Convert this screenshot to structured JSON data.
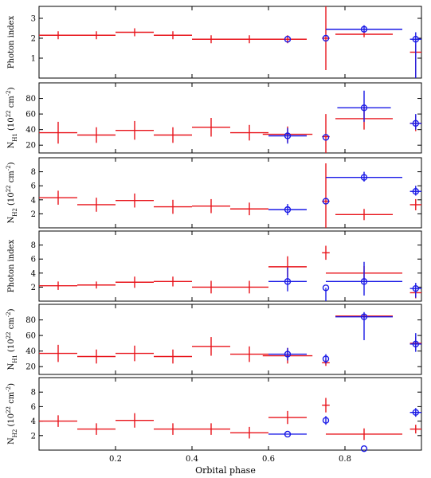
{
  "chart_data": [
    {
      "type": "scatter",
      "ylabel": "Photon index",
      "xlim": [
        0.0,
        1.0
      ],
      "ylim": [
        0.0,
        3.6
      ],
      "yticks": [
        1,
        2,
        3
      ],
      "series": [
        {
          "color": "#e8141b",
          "marker": "plus",
          "points": [
            {
              "x": 0.05,
              "xerr": 0.05,
              "y": 2.15,
              "yerr": [
                0.2,
                0.2
              ]
            },
            {
              "x": 0.15,
              "xerr": 0.05,
              "y": 2.15,
              "yerr": [
                0.2,
                0.2
              ]
            },
            {
              "x": 0.25,
              "xerr": 0.05,
              "y": 2.3,
              "yerr": [
                0.2,
                0.2
              ]
            },
            {
              "x": 0.35,
              "xerr": 0.05,
              "y": 2.15,
              "yerr": [
                0.2,
                0.2
              ]
            },
            {
              "x": 0.45,
              "xerr": 0.05,
              "y": 1.95,
              "yerr": [
                0.2,
                0.2
              ]
            },
            {
              "x": 0.55,
              "xerr": 0.05,
              "y": 1.95,
              "yerr": [
                0.2,
                0.2
              ]
            },
            {
              "x": 0.65,
              "xerr": 0.05,
              "y": 1.95,
              "yerr": [
                0.2,
                0.2
              ]
            },
            {
              "x": 0.75,
              "xerr": 0.01,
              "y": 2.0,
              "yerr": [
                1.6,
                1.6
              ]
            },
            {
              "x": 0.85,
              "xerr": 0.075,
              "y": 2.2,
              "yerr": [
                0.15,
                0.15
              ]
            },
            {
              "x": 0.985,
              "xerr": 0.015,
              "y": 1.3,
              "yerr": [
                1.3,
                0.4
              ]
            }
          ]
        },
        {
          "color": "#1a1ae6",
          "marker": "circle",
          "points": [
            {
              "x": 0.65,
              "xerr": 0.0,
              "y": 1.95,
              "yerr": [
                0.0,
                0.0
              ]
            },
            {
              "x": 0.75,
              "xerr": 0.0,
              "y": 2.0,
              "yerr": [
                0.0,
                0.0
              ]
            },
            {
              "x": 0.85,
              "xerr": 0.1,
              "y": 2.45,
              "yerr": [
                0.15,
                0.2
              ]
            },
            {
              "x": 0.985,
              "xerr": 0.015,
              "y": 1.95,
              "yerr": [
                1.95,
                0.35
              ]
            }
          ]
        }
      ]
    },
    {
      "type": "scatter",
      "ylabel": "N_H1 (10^22 cm^-2)",
      "xlim": [
        0.0,
        1.0
      ],
      "ylim": [
        10,
        100
      ],
      "yticks": [
        20,
        40,
        60,
        80
      ],
      "series": [
        {
          "color": "#e8141b",
          "marker": "plus",
          "points": [
            {
              "x": 0.05,
              "xerr": 0.05,
              "y": 36,
              "yerr": [
                14,
                14
              ]
            },
            {
              "x": 0.15,
              "xerr": 0.05,
              "y": 33,
              "yerr": [
                10,
                10
              ]
            },
            {
              "x": 0.25,
              "xerr": 0.05,
              "y": 39,
              "yerr": [
                12,
                12
              ]
            },
            {
              "x": 0.35,
              "xerr": 0.05,
              "y": 33,
              "yerr": [
                10,
                10
              ]
            },
            {
              "x": 0.45,
              "xerr": 0.05,
              "y": 43,
              "yerr": [
                12,
                12
              ]
            },
            {
              "x": 0.55,
              "xerr": 0.05,
              "y": 36,
              "yerr": [
                10,
                10
              ]
            },
            {
              "x": 0.65,
              "xerr": 0.065,
              "y": 34,
              "yerr": [
                10,
                10
              ]
            },
            {
              "x": 0.75,
              "xerr": 0.01,
              "y": 31,
              "yerr": [
                21,
                29
              ]
            },
            {
              "x": 0.85,
              "xerr": 0.075,
              "y": 54,
              "yerr": [
                14,
                16
              ]
            },
            {
              "x": 0.985,
              "xerr": 0.015,
              "y": 48,
              "yerr": [
                10,
                10
              ]
            }
          ]
        },
        {
          "color": "#1a1ae6",
          "marker": "circle",
          "points": [
            {
              "x": 0.65,
              "xerr": 0.05,
              "y": 32,
              "yerr": [
                10,
                10
              ]
            },
            {
              "x": 0.75,
              "xerr": 0.0,
              "y": 30,
              "yerr": [
                0.0,
                0.0
              ]
            },
            {
              "x": 0.85,
              "xerr": 0.07,
              "y": 68,
              "yerr": [
                18,
                22
              ]
            },
            {
              "x": 0.985,
              "xerr": 0.015,
              "y": 48,
              "yerr": [
                8,
                12
              ]
            }
          ]
        }
      ]
    },
    {
      "type": "scatter",
      "ylabel": "N_H2 (10^22 cm^-2)",
      "xlim": [
        0.0,
        1.0
      ],
      "ylim": [
        0.0,
        10.0
      ],
      "yticks": [
        2,
        4,
        6,
        8
      ],
      "series": [
        {
          "color": "#e8141b",
          "marker": "plus",
          "points": [
            {
              "x": 0.05,
              "xerr": 0.05,
              "y": 4.3,
              "yerr": [
                1.0,
                1.0
              ]
            },
            {
              "x": 0.15,
              "xerr": 0.05,
              "y": 3.3,
              "yerr": [
                1.0,
                1.0
              ]
            },
            {
              "x": 0.25,
              "xerr": 0.05,
              "y": 3.9,
              "yerr": [
                1.0,
                1.0
              ]
            },
            {
              "x": 0.35,
              "xerr": 0.05,
              "y": 3.0,
              "yerr": [
                1.0,
                1.0
              ]
            },
            {
              "x": 0.45,
              "xerr": 0.05,
              "y": 3.1,
              "yerr": [
                1.0,
                1.0
              ]
            },
            {
              "x": 0.55,
              "xerr": 0.05,
              "y": 2.7,
              "yerr": [
                0.9,
                0.9
              ]
            },
            {
              "x": 0.75,
              "xerr": 0.01,
              "y": 3.8,
              "yerr": [
                3.8,
                5.4
              ]
            },
            {
              "x": 0.85,
              "xerr": 0.075,
              "y": 1.9,
              "yerr": [
                0.8,
                0.8
              ]
            },
            {
              "x": 0.985,
              "xerr": 0.015,
              "y": 3.3,
              "yerr": [
                0.8,
                0.8
              ]
            }
          ]
        },
        {
          "color": "#1a1ae6",
          "marker": "circle",
          "points": [
            {
              "x": 0.65,
              "xerr": 0.05,
              "y": 2.6,
              "yerr": [
                0.8,
                0.8
              ]
            },
            {
              "x": 0.75,
              "xerr": 0.0,
              "y": 3.8,
              "yerr": [
                0.0,
                0.0
              ]
            },
            {
              "x": 0.85,
              "xerr": 0.1,
              "y": 7.2,
              "yerr": [
                0.6,
                0.8
              ]
            },
            {
              "x": 0.985,
              "xerr": 0.015,
              "y": 5.2,
              "yerr": [
                0.6,
                0.8
              ]
            }
          ]
        }
      ]
    },
    {
      "type": "scatter",
      "ylabel": "Photon index",
      "xlim": [
        0.0,
        1.0
      ],
      "ylim": [
        0.0,
        10.0
      ],
      "yticks": [
        2,
        4,
        6,
        8
      ],
      "series": [
        {
          "color": "#e8141b",
          "marker": "plus",
          "points": [
            {
              "x": 0.05,
              "xerr": 0.05,
              "y": 2.2,
              "yerr": [
                0.6,
                0.6
              ]
            },
            {
              "x": 0.15,
              "xerr": 0.05,
              "y": 2.3,
              "yerr": [
                0.5,
                0.5
              ]
            },
            {
              "x": 0.25,
              "xerr": 0.05,
              "y": 2.7,
              "yerr": [
                0.8,
                0.8
              ]
            },
            {
              "x": 0.35,
              "xerr": 0.05,
              "y": 2.8,
              "yerr": [
                0.7,
                0.7
              ]
            },
            {
              "x": 0.45,
              "xerr": 0.05,
              "y": 2.0,
              "yerr": [
                0.9,
                0.9
              ]
            },
            {
              "x": 0.55,
              "xerr": 0.05,
              "y": 2.0,
              "yerr": [
                0.9,
                0.9
              ]
            },
            {
              "x": 0.65,
              "xerr": 0.05,
              "y": 4.9,
              "yerr": [
                1.5,
                1.5
              ]
            },
            {
              "x": 0.75,
              "xerr": 0.01,
              "y": 6.9,
              "yerr": [
                1.0,
                1.0
              ]
            },
            {
              "x": 0.85,
              "xerr": 0.1,
              "y": 4.0,
              "yerr": [
                1.0,
                1.0
              ]
            },
            {
              "x": 0.985,
              "xerr": 0.015,
              "y": 1.2,
              "yerr": [
                0.8,
                0.8
              ]
            }
          ]
        },
        {
          "color": "#1a1ae6",
          "marker": "circle",
          "points": [
            {
              "x": 0.65,
              "xerr": 0.05,
              "y": 2.8,
              "yerr": [
                1.4,
                2.0
              ]
            },
            {
              "x": 0.75,
              "xerr": 0.0,
              "y": 1.9,
              "yerr": [
                1.9,
                0.0
              ]
            },
            {
              "x": 0.85,
              "xerr": 0.1,
              "y": 2.8,
              "yerr": [
                2.0,
                2.8
              ]
            },
            {
              "x": 0.985,
              "xerr": 0.015,
              "y": 1.8,
              "yerr": [
                1.3,
                0.8
              ]
            }
          ]
        }
      ]
    },
    {
      "type": "scatter",
      "ylabel": "N_H1 (10^22 cm^-2)",
      "xlim": [
        0.0,
        1.0
      ],
      "ylim": [
        10,
        100
      ],
      "yticks": [
        20,
        40,
        60,
        80
      ],
      "series": [
        {
          "color": "#e8141b",
          "marker": "plus",
          "points": [
            {
              "x": 0.05,
              "xerr": 0.05,
              "y": 37,
              "yerr": [
                11,
                11
              ]
            },
            {
              "x": 0.15,
              "xerr": 0.05,
              "y": 33,
              "yerr": [
                9,
                9
              ]
            },
            {
              "x": 0.25,
              "xerr": 0.05,
              "y": 37,
              "yerr": [
                10,
                10
              ]
            },
            {
              "x": 0.35,
              "xerr": 0.05,
              "y": 33,
              "yerr": [
                9,
                9
              ]
            },
            {
              "x": 0.45,
              "xerr": 0.05,
              "y": 46,
              "yerr": [
                12,
                12
              ]
            },
            {
              "x": 0.55,
              "xerr": 0.05,
              "y": 36,
              "yerr": [
                10,
                10
              ]
            },
            {
              "x": 0.65,
              "xerr": 0.065,
              "y": 34,
              "yerr": [
                10,
                10
              ]
            },
            {
              "x": 0.75,
              "xerr": 0.01,
              "y": 25,
              "yerr": [
                4,
                4
              ]
            },
            {
              "x": 0.85,
              "xerr": 0.075,
              "y": 85,
              "yerr": [
                3,
                3
              ]
            },
            {
              "x": 0.985,
              "xerr": 0.015,
              "y": 50,
              "yerr": [
                8,
                8
              ]
            }
          ]
        },
        {
          "color": "#1a1ae6",
          "marker": "circle",
          "points": [
            {
              "x": 0.65,
              "xerr": 0.05,
              "y": 36,
              "yerr": [
                8,
                8
              ]
            },
            {
              "x": 0.75,
              "xerr": 0.0,
              "y": 30,
              "yerr": [
                6,
                6
              ]
            },
            {
              "x": 0.85,
              "xerr": 0.075,
              "y": 84,
              "yerr": [
                30,
                6
              ]
            },
            {
              "x": 0.985,
              "xerr": 0.015,
              "y": 49,
              "yerr": [
                10,
                14
              ]
            }
          ]
        }
      ]
    },
    {
      "type": "scatter",
      "ylabel": "N_H2 (10^22 cm^-2)",
      "xlabel": "Orbital phase",
      "xlim": [
        0.0,
        1.0
      ],
      "ylim": [
        0.0,
        10.0
      ],
      "yticks": [
        2,
        4,
        6,
        8
      ],
      "xticks": [
        0.2,
        0.4,
        0.6,
        0.8
      ],
      "series": [
        {
          "color": "#e8141b",
          "marker": "plus",
          "points": [
            {
              "x": 0.05,
              "xerr": 0.05,
              "y": 4.0,
              "yerr": [
                0.8,
                0.8
              ]
            },
            {
              "x": 0.15,
              "xerr": 0.05,
              "y": 2.9,
              "yerr": [
                0.8,
                0.8
              ]
            },
            {
              "x": 0.25,
              "xerr": 0.05,
              "y": 4.1,
              "yerr": [
                1.0,
                1.0
              ]
            },
            {
              "x": 0.35,
              "xerr": 0.05,
              "y": 2.9,
              "yerr": [
                0.8,
                0.8
              ]
            },
            {
              "x": 0.45,
              "xerr": 0.05,
              "y": 2.9,
              "yerr": [
                0.8,
                0.8
              ]
            },
            {
              "x": 0.55,
              "xerr": 0.05,
              "y": 2.4,
              "yerr": [
                0.8,
                0.8
              ]
            },
            {
              "x": 0.65,
              "xerr": 0.05,
              "y": 4.5,
              "yerr": [
                0.9,
                0.9
              ]
            },
            {
              "x": 0.75,
              "xerr": 0.01,
              "y": 6.2,
              "yerr": [
                1.0,
                1.0
              ]
            },
            {
              "x": 0.85,
              "xerr": 0.1,
              "y": 2.2,
              "yerr": [
                0.8,
                0.8
              ]
            },
            {
              "x": 0.985,
              "xerr": 0.015,
              "y": 2.9,
              "yerr": [
                0.6,
                0.6
              ]
            }
          ]
        },
        {
          "color": "#1a1ae6",
          "marker": "circle",
          "points": [
            {
              "x": 0.65,
              "xerr": 0.05,
              "y": 2.2,
              "yerr": [
                0.0,
                0.0
              ]
            },
            {
              "x": 0.75,
              "xerr": 0.0,
              "y": 4.1,
              "yerr": [
                0.6,
                0.6
              ]
            },
            {
              "x": 0.85,
              "xerr": 0.0,
              "y": 0.2,
              "yerr": [
                0.0,
                0.0
              ]
            },
            {
              "x": 0.985,
              "xerr": 0.015,
              "y": 5.2,
              "yerr": [
                0.6,
                0.6
              ]
            }
          ]
        }
      ]
    }
  ]
}
